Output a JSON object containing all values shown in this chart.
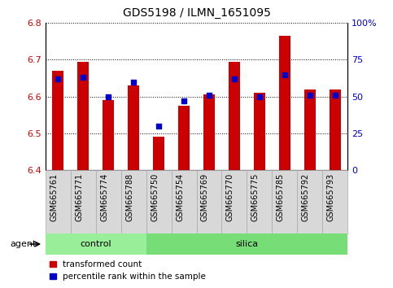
{
  "title": "GDS5198 / ILMN_1651095",
  "samples": [
    "GSM665761",
    "GSM665771",
    "GSM665774",
    "GSM665788",
    "GSM665750",
    "GSM665754",
    "GSM665769",
    "GSM665770",
    "GSM665775",
    "GSM665785",
    "GSM665792",
    "GSM665793"
  ],
  "groups": [
    "control",
    "control",
    "control",
    "control",
    "silica",
    "silica",
    "silica",
    "silica",
    "silica",
    "silica",
    "silica",
    "silica"
  ],
  "transformed_count": [
    6.67,
    6.695,
    6.59,
    6.63,
    6.49,
    6.575,
    6.605,
    6.695,
    6.61,
    6.765,
    6.62,
    6.62
  ],
  "percentile_rank": [
    62,
    63,
    50,
    60,
    30,
    47,
    51,
    62,
    50,
    65,
    51,
    51
  ],
  "y_min": 6.4,
  "y_max": 6.8,
  "y_ticks": [
    6.4,
    6.5,
    6.6,
    6.7,
    6.8
  ],
  "right_y_ticks": [
    0,
    25,
    50,
    75,
    100
  ],
  "bar_color": "#cc0000",
  "dot_color": "#0000cc",
  "control_color": "#99ee99",
  "silica_color": "#77dd77",
  "agent_label": "agent",
  "legend_bar_label": "transformed count",
  "legend_dot_label": "percentile rank within the sample",
  "bar_width": 0.45,
  "tick_label_fontsize": 7,
  "axis_label_fontsize": 8,
  "title_fontsize": 10,
  "gray_bg": "#d8d8d8",
  "gray_border": "#aaaaaa"
}
